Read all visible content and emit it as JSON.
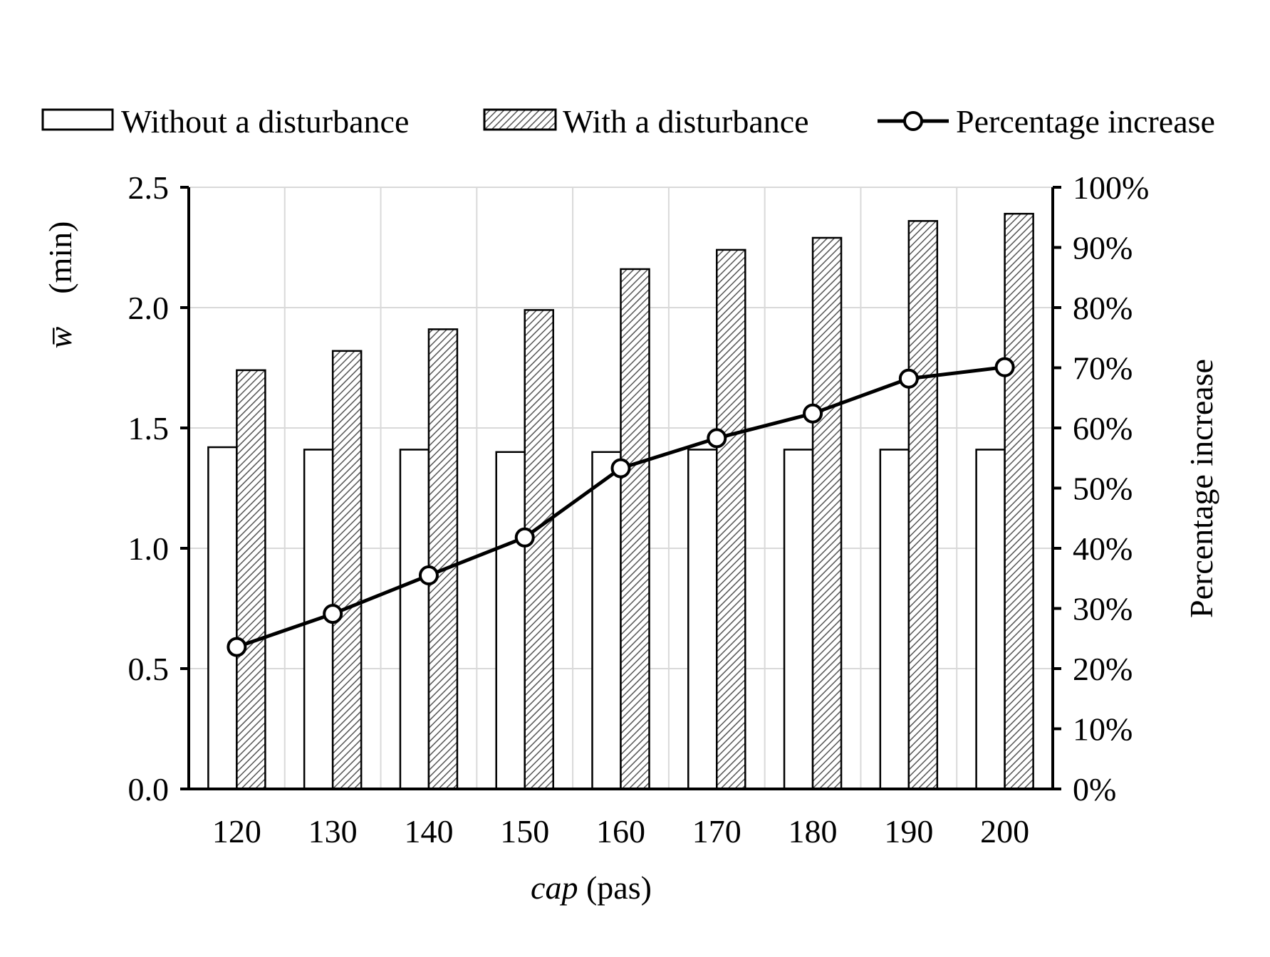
{
  "chart_data": {
    "type": "bar",
    "categories": [
      "120",
      "130",
      "140",
      "150",
      "160",
      "170",
      "180",
      "190",
      "200"
    ],
    "series": [
      {
        "name": "Without a disturbance",
        "kind": "bar",
        "axis": "left",
        "pattern": "none",
        "values": [
          1.42,
          1.41,
          1.41,
          1.4,
          1.4,
          1.41,
          1.41,
          1.41,
          1.41
        ]
      },
      {
        "name": "With a disturbance",
        "kind": "bar",
        "axis": "left",
        "pattern": "hatch",
        "values": [
          1.74,
          1.82,
          1.91,
          1.99,
          2.16,
          2.24,
          2.29,
          2.36,
          2.39
        ]
      },
      {
        "name": "Percentage increase",
        "kind": "line",
        "axis": "right",
        "marker": "open-circle",
        "values": [
          23.6,
          29.1,
          35.5,
          41.8,
          53.3,
          58.3,
          62.4,
          68.2,
          70.1
        ]
      }
    ],
    "xlabel": {
      "italic": "cap",
      "rest": " (pas)"
    },
    "ylabel": {
      "symbol": "w",
      "unit": "(min)"
    },
    "y2label": "Percentage increase",
    "ylim": [
      0,
      2.5
    ],
    "y_ticks": [
      "0.0",
      "0.5",
      "1.0",
      "1.5",
      "2.0",
      "2.5"
    ],
    "y2lim": [
      0,
      100
    ],
    "y2_ticks": [
      "0%",
      "10%",
      "20%",
      "30%",
      "40%",
      "50%",
      "60%",
      "70%",
      "80%",
      "90%",
      "100%"
    ],
    "grid": true,
    "legend_position": "top",
    "colors": {
      "axis": "#000000",
      "grid": "#d9d9d9",
      "bar_fill": "#ffffff",
      "line": "#000000"
    }
  }
}
